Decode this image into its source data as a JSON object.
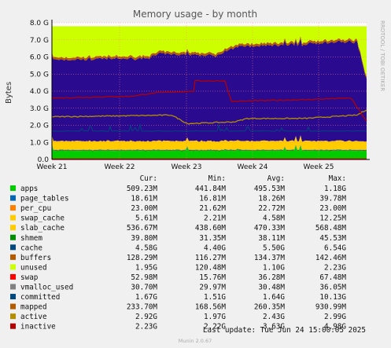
{
  "chart_data": {
    "type": "area",
    "title": "Memory usage - by month",
    "ylabel": "Bytes",
    "ylim": [
      0,
      8
    ],
    "y_unit": "G",
    "y_ticks": [
      "0.0",
      "1.0 G",
      "2.0 G",
      "3.0 G",
      "4.0 G",
      "5.0 G",
      "6.0 G",
      "7.0 G",
      "8.0 G"
    ],
    "x_ticks": [
      "Week 21",
      "Week 22",
      "Week 23",
      "Week 24",
      "Week 25"
    ],
    "grid": true,
    "side_label": "RRDTOOL / TOBI OETIKER",
    "columns": [
      "Cur:",
      "Min:",
      "Avg:",
      "Max:"
    ],
    "legend": [
      {
        "name": "apps",
        "color": "#00cc00",
        "cur": "509.23M",
        "min": "441.84M",
        "avg": "495.53M",
        "max": "1.18G"
      },
      {
        "name": "page_tables",
        "color": "#0066b3",
        "cur": "18.61M",
        "min": "16.81M",
        "avg": "18.26M",
        "max": "39.78M"
      },
      {
        "name": "per_cpu",
        "color": "#ff8000",
        "cur": "23.00M",
        "min": "21.62M",
        "avg": "22.72M",
        "max": "23.00M"
      },
      {
        "name": "swap_cache",
        "color": "#ffcc00",
        "cur": "5.61M",
        "min": "2.21M",
        "avg": "4.58M",
        "max": "12.25M"
      },
      {
        "name": "slab_cache",
        "color": "#ffcc00",
        "cur": "536.67M",
        "min": "438.60M",
        "avg": "470.33M",
        "max": "568.48M"
      },
      {
        "name": "shmem",
        "color": "#008f00",
        "cur": "39.80M",
        "min": "31.35M",
        "avg": "38.11M",
        "max": "45.53M"
      },
      {
        "name": "cache",
        "color": "#00487d",
        "cur": "4.58G",
        "min": "4.40G",
        "avg": "5.50G",
        "max": "6.54G"
      },
      {
        "name": "buffers",
        "color": "#b35a00",
        "cur": "128.29M",
        "min": "116.27M",
        "avg": "134.37M",
        "max": "142.46M"
      },
      {
        "name": "unused",
        "color": "#ccff00",
        "cur": "1.95G",
        "min": "120.48M",
        "avg": "1.10G",
        "max": "2.23G"
      },
      {
        "name": "swap",
        "color": "#ff0000",
        "cur": "52.98M",
        "min": "15.76M",
        "avg": "36.28M",
        "max": "67.48M"
      },
      {
        "name": "vmalloc_used",
        "color": "#808080",
        "cur": "30.70M",
        "min": "29.97M",
        "avg": "30.48M",
        "max": "36.05M"
      },
      {
        "name": "committed",
        "color": "#00487d",
        "cur": "1.67G",
        "min": "1.51G",
        "avg": "1.64G",
        "max": "10.13G"
      },
      {
        "name": "mapped",
        "color": "#b35a00",
        "cur": "233.70M",
        "min": "168.56M",
        "avg": "260.35M",
        "max": "930.99M"
      },
      {
        "name": "active",
        "color": "#b38f00",
        "cur": "2.92G",
        "min": "1.97G",
        "avg": "2.43G",
        "max": "2.99G"
      },
      {
        "name": "inactive",
        "color": "#b30000",
        "cur": "2.23G",
        "min": "2.22G",
        "avg": "3.63G",
        "max": "4.98G"
      }
    ],
    "last_update": "Last update: Tue Jun 24 15:00:05 2025",
    "footer": "Munin 2.0.67"
  }
}
